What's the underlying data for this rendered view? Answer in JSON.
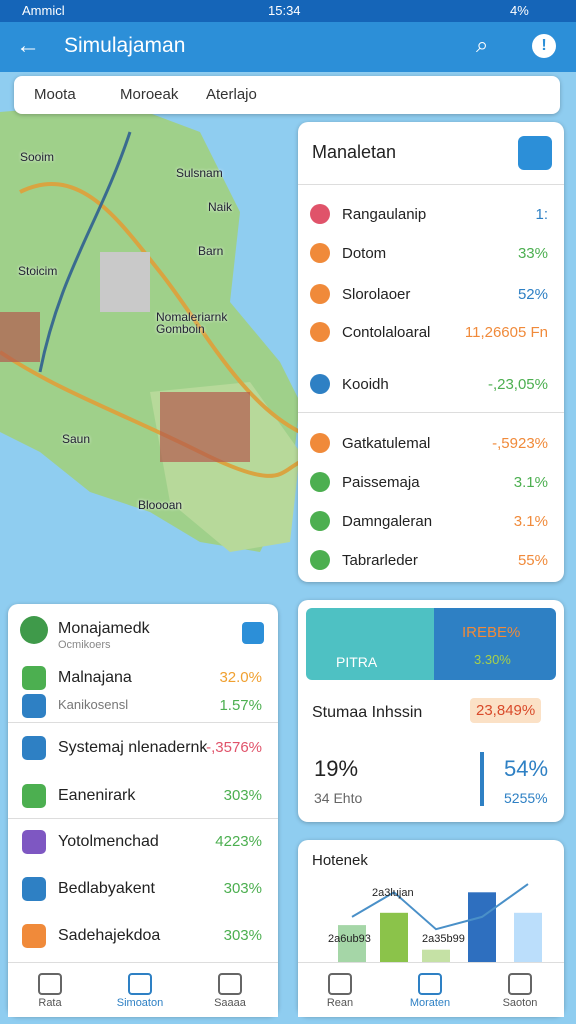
{
  "status_bar": {
    "carrier": "Ammicl",
    "time": "15:34",
    "battery": "4%"
  },
  "app_bar": {
    "title": "Simulajaman"
  },
  "search_bar": {
    "tabs": [
      "Moota",
      "Moroeak",
      "Aterlajo"
    ]
  },
  "map": {
    "labels": [
      "Sooim",
      "Sulsnam",
      "Naik",
      "Barn",
      "Stoicim",
      "Nomaleriarnk",
      "Gomboin",
      "Saun",
      "Bloooan"
    ]
  },
  "side_panel": {
    "title": "Manaletan",
    "rows": [
      [
        "Rangaulanip",
        "1:"
      ],
      [
        "Dotom",
        "33%"
      ],
      [
        "Slorolaoer",
        "52%"
      ],
      [
        "Contolaloaral",
        "11,26605 Fn"
      ],
      [
        "Kooidh",
        "-,23,05%"
      ],
      [
        "Gatkatulemal",
        "-,5923%"
      ],
      [
        "Paissemaja",
        "3.1%"
      ],
      [
        "Damngaleran",
        "3.1%"
      ],
      [
        "Tabrarleder",
        "55%"
      ]
    ]
  },
  "left_card": {
    "title": "Monajamedk",
    "subtitle": "Ocmikoers",
    "rows": [
      [
        "Malnajana",
        "32.0%"
      ],
      [
        "Kanikosensl",
        "1.57%"
      ],
      [
        "Systemaj nlenadernk",
        "-,3576%"
      ],
      [
        "Eanenirark",
        "303%"
      ],
      [
        "Yotolmenchad",
        "4223%"
      ],
      [
        "Bedlabyakent",
        "303%"
      ],
      [
        "Sadehajekdoa",
        "303%"
      ]
    ]
  },
  "stats_card": {
    "banner_left": "PITRA",
    "banner_right_top": "IREBE%",
    "banner_right_bottom": "3.30%",
    "row_label": "Stumaa Inhssin",
    "row_badge": "23,849%",
    "big_left": "19%",
    "big_right": "54%",
    "small_left": "34 Ehto",
    "small_right": "5255%"
  },
  "chart_card": {
    "title": "Hotenek",
    "labels": [
      "2a3lujan",
      "2a6ub93",
      "2a35b99"
    ],
    "bars": [
      45,
      60,
      15,
      85,
      60
    ],
    "line": [
      55,
      85,
      40,
      55,
      95
    ],
    "ylim": [
      0,
      100
    ]
  },
  "bottom_nav_left": [
    "Rata",
    "Simoaton",
    "Saaaa"
  ],
  "bottom_nav_right": [
    "Rean",
    "Moraten",
    "Saoton"
  ]
}
